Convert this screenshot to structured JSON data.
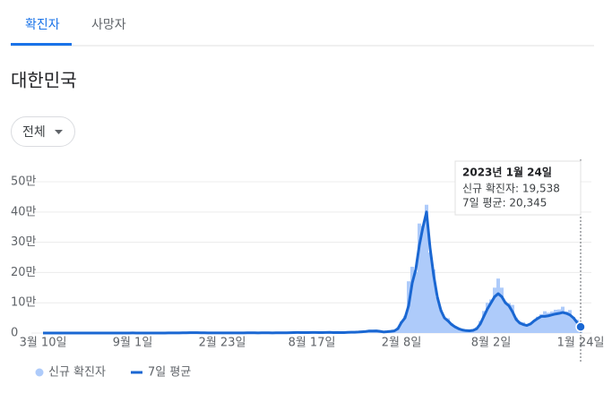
{
  "tabs": [
    "확진자",
    "사망자"
  ],
  "region": "대한민국",
  "filter": "전체",
  "chart_data": {
    "type": "bar-line",
    "categories": [
      "3월 10일",
      null,
      null,
      null,
      null,
      null,
      null,
      null,
      null,
      null,
      null,
      null,
      null,
      null,
      null,
      null,
      null,
      null,
      null,
      null,
      null,
      null,
      null,
      null,
      null,
      "9월 1일",
      null,
      null,
      null,
      null,
      null,
      null,
      null,
      null,
      null,
      null,
      null,
      null,
      null,
      null,
      null,
      null,
      null,
      null,
      null,
      null,
      null,
      null,
      null,
      null,
      "2월 23일",
      null,
      null,
      null,
      null,
      null,
      null,
      null,
      null,
      null,
      null,
      null,
      null,
      null,
      null,
      null,
      null,
      null,
      null,
      null,
      null,
      null,
      null,
      null,
      null,
      "8월 17일",
      null,
      null,
      null,
      null,
      null,
      null,
      null,
      null,
      null,
      null,
      null,
      null,
      null,
      null,
      null,
      null,
      null,
      null,
      null,
      null,
      null,
      null,
      null,
      null,
      "2월 8일",
      null,
      null,
      null,
      null,
      null,
      null,
      null,
      null,
      null,
      null,
      null,
      null,
      null,
      null,
      null,
      null,
      null,
      null,
      null,
      null,
      null,
      null,
      null,
      null,
      "8월 2일",
      null,
      null,
      null,
      null,
      null,
      null,
      null,
      null,
      null,
      null,
      null,
      null,
      null,
      null,
      null,
      null,
      null,
      null,
      null,
      null,
      null,
      null,
      null,
      null,
      "1월 24일"
    ],
    "series": [
      {
        "name": "신규 확진자",
        "color": "#aecbfa",
        "kind": "bar",
        "values": [
          131,
          107,
          98,
          76,
          47,
          53,
          39,
          25,
          18,
          8,
          13,
          27,
          79,
          40,
          38,
          51,
          50,
          62,
          46,
          61,
          34,
          34,
          33,
          56,
          103,
          235,
          156,
          121,
          110,
          82,
          69,
          72,
          97,
          118,
          126,
          223,
          349,
          511,
          451,
          594,
          880,
          1030,
          1078,
          1045,
          820,
          537,
          513,
          504,
          370,
          403,
          356,
          444,
          446,
          465,
          482,
          457,
          543,
          677,
          731,
          587,
          511,
          574,
          701,
          593,
          457,
          678,
          562,
          671,
          746,
          1275,
          1615,
          1842,
          1627,
          1725,
          1202,
          1804,
          1880,
          1486,
          1375,
          2049,
          2289,
          1575,
          2028,
          1441,
          1567,
          2425,
          2520,
          2675,
          3187,
          4116,
          5123,
          7174,
          6563,
          7850,
          5409,
          3126,
          4388,
          5805,
          8571,
          18000,
          38000,
          57000,
          171000,
          219000,
          202000,
          362000,
          354000,
          424000,
          266000,
          210000,
          118000,
          76000,
          51000,
          49000,
          32000,
          23000,
          13000,
          13000,
          10000,
          9000,
          12000,
          19000,
          40000,
          73000,
          100000,
          111000,
          150000,
          180000,
          150000,
          104000,
          99000,
          93000,
          51000,
          38000,
          36000,
          27000,
          33000,
          42000,
          54000,
          62000,
          72000,
          67000,
          71000,
          77000,
          78000,
          87000,
          71000,
          76000,
          53000,
          44000,
          19538
        ]
      },
      {
        "name": "7일 평균",
        "color": "#1a67d2",
        "kind": "line",
        "values": [
          150,
          110,
          95,
          80,
          55,
          45,
          35,
          25,
          15,
          10,
          15,
          30,
          50,
          45,
          40,
          45,
          50,
          55,
          50,
          55,
          40,
          35,
          35,
          50,
          100,
          250,
          170,
          120,
          105,
          85,
          75,
          75,
          95,
          115,
          130,
          215,
          340,
          490,
          480,
          600,
          900,
          1000,
          1050,
          1000,
          800,
          550,
          500,
          480,
          380,
          400,
          380,
          430,
          440,
          460,
          470,
          460,
          540,
          650,
          700,
          600,
          530,
          560,
          680,
          600,
          480,
          640,
          570,
          650,
          730,
          1200,
          1550,
          1700,
          1600,
          1650,
          1300,
          1750,
          1800,
          1500,
          1400,
          1900,
          2100,
          1600,
          1900,
          1500,
          1600,
          2300,
          2500,
          2700,
          3200,
          4000,
          5000,
          6800,
          6500,
          7000,
          5500,
          3500,
          4300,
          5500,
          7000,
          14000,
          35000,
          50000,
          90000,
          165000,
          210000,
          290000,
          350000,
          400000,
          280000,
          190000,
          120000,
          75000,
          50000,
          40000,
          28000,
          20000,
          14000,
          10000,
          8000,
          7500,
          9000,
          14000,
          30000,
          55000,
          80000,
          100000,
          120000,
          130000,
          120000,
          100000,
          90000,
          70000,
          45000,
          33000,
          28000,
          25000,
          30000,
          40000,
          48000,
          55000,
          55000,
          57000,
          60000,
          63000,
          65000,
          68000,
          65000,
          60000,
          50000,
          35000,
          20345
        ]
      }
    ],
    "ylim": [
      0,
      580000
    ],
    "yticks": [
      0,
      {
        "value": 100000,
        "label": "10만"
      },
      {
        "value": 200000,
        "label": "20만"
      },
      {
        "value": 300000,
        "label": "30만"
      },
      {
        "value": 400000,
        "label": "40만"
      },
      {
        "value": 500000,
        "label": "50만"
      }
    ],
    "grid": true,
    "tooltip": {
      "title": "2023년 1월 24일",
      "lines": [
        "신규 확진자: 19,538",
        "7일 평균: 20,345"
      ]
    }
  }
}
